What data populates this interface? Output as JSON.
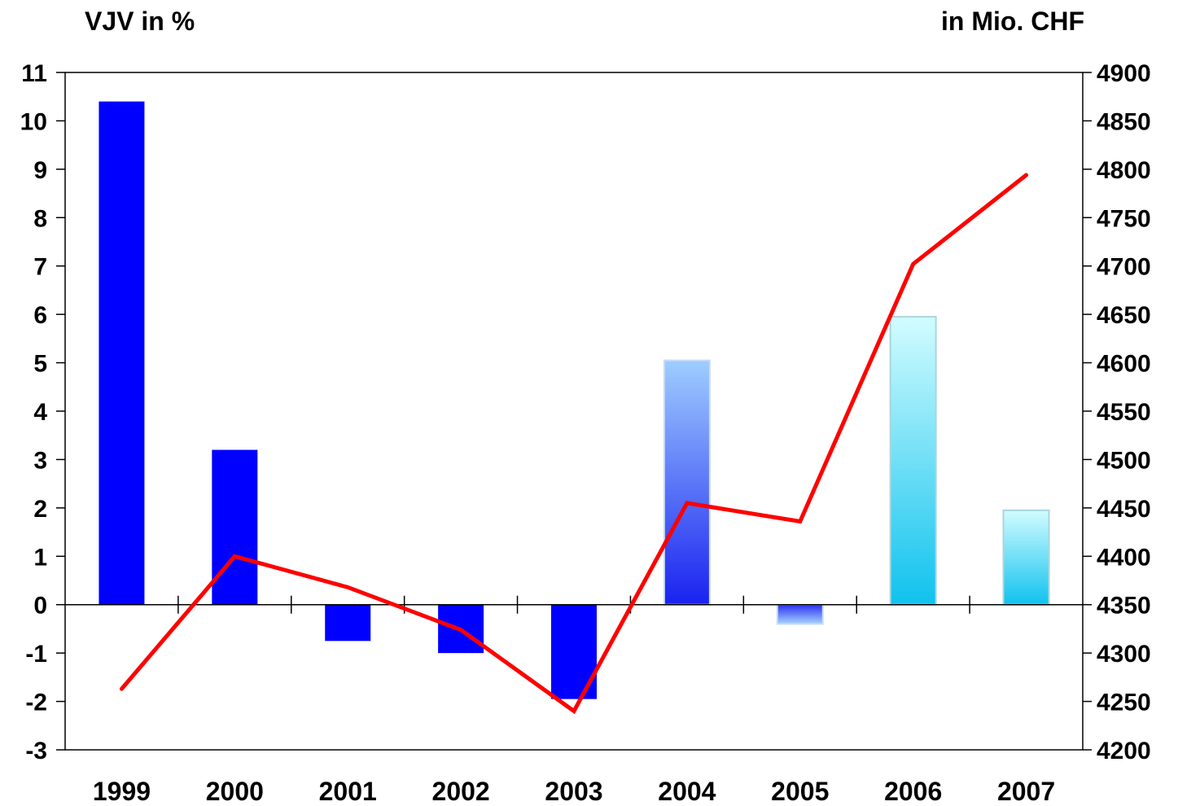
{
  "chart_data": {
    "type": "bar",
    "left_axis_label": "VJV in %",
    "right_axis_label": "in Mio. CHF",
    "categories": [
      "1999",
      "2000",
      "2001",
      "2002",
      "2003",
      "2004",
      "2005",
      "2006",
      "2007"
    ],
    "series": [
      {
        "type": "bar",
        "axis": "left",
        "values": [
          10.4,
          3.2,
          -0.75,
          -1.0,
          -1.95,
          5.05,
          -0.4,
          5.95,
          1.95
        ],
        "colors": [
          "#0000ff",
          "#0000ff",
          "#0000ff",
          "#0000ff",
          "#0000ff",
          "gradient-blue",
          "gradient-blue",
          "gradient-cyan",
          "gradient-cyan"
        ]
      },
      {
        "type": "line",
        "axis": "right",
        "color": "#ff0000",
        "values": [
          4263,
          4400,
          4368,
          4324,
          4240,
          4455,
          4436,
          4702,
          4794
        ]
      }
    ],
    "left_ylim": [
      -3,
      11
    ],
    "left_ticks": [
      "-3",
      "-2",
      "-1",
      "0",
      "1",
      "2",
      "3",
      "4",
      "5",
      "6",
      "7",
      "8",
      "9",
      "10",
      "11"
    ],
    "right_ylim": [
      4200,
      4900
    ],
    "right_ticks": [
      "4200",
      "4250",
      "4300",
      "4350",
      "4400",
      "4450",
      "4500",
      "4550",
      "4600",
      "4650",
      "4700",
      "4750",
      "4800",
      "4850",
      "4900"
    ],
    "grid": false
  }
}
